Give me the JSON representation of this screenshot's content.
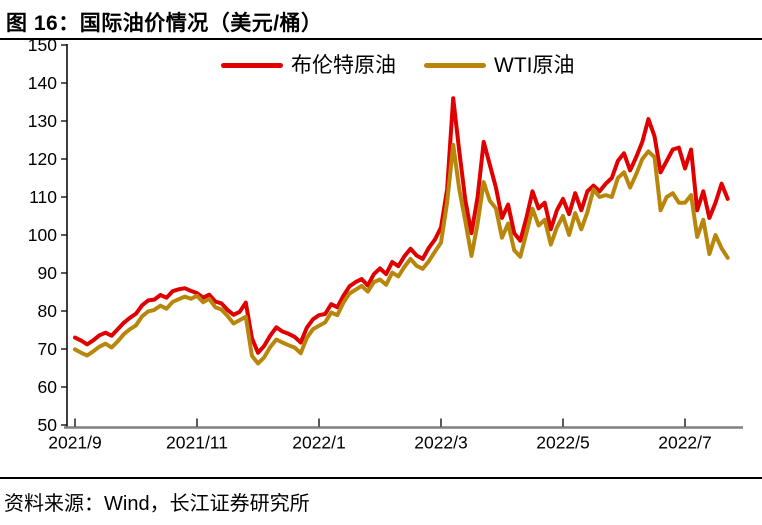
{
  "header": {
    "title": "图  16：国际油价情况（美元/桶）"
  },
  "footer": {
    "source": "资料来源：Wind，长江证券研究所"
  },
  "chart_data": {
    "type": "line",
    "title": "国际油价情况（美元/桶）",
    "unit": "美元/桶",
    "grid": false,
    "legend_position": "top-center",
    "x_axis": {
      "unit": "months_since_2021_09",
      "start": 0,
      "step": 0.1,
      "ticks": [
        {
          "m": 0,
          "label": "2021/9"
        },
        {
          "m": 2,
          "label": "2021/11"
        },
        {
          "m": 4,
          "label": "2022/1"
        },
        {
          "m": 6,
          "label": "2022/3"
        },
        {
          "m": 8,
          "label": "2022/5"
        },
        {
          "m": 10,
          "label": "2022/7"
        }
      ],
      "spine_color": "#808080"
    },
    "y_axis": {
      "min": 50,
      "max": 150,
      "ticks": [
        150,
        140,
        130,
        120,
        110,
        100,
        90,
        80,
        70,
        60,
        50
      ],
      "spine_color": "#000000"
    },
    "series": [
      {
        "name": "布伦特原油",
        "color": "#e00000",
        "values": [
          73.0,
          72.2,
          71.2,
          72.3,
          73.6,
          74.3,
          73.5,
          75.2,
          76.9,
          78.2,
          79.3,
          81.5,
          82.8,
          83.0,
          84.2,
          83.5,
          85.2,
          85.7,
          86.0,
          85.3,
          84.7,
          83.5,
          84.3,
          82.5,
          82.0,
          80.3,
          79.0,
          79.8,
          82.2,
          72.9,
          69.0,
          70.8,
          73.5,
          75.7,
          74.6,
          74.0,
          73.2,
          71.7,
          75.6,
          77.8,
          78.9,
          79.2,
          81.8,
          81.0,
          84.0,
          86.5,
          87.6,
          88.4,
          86.7,
          89.7,
          91.2,
          89.7,
          92.9,
          91.8,
          94.4,
          96.4,
          94.6,
          93.7,
          96.6,
          98.8,
          102.0,
          112.0,
          136.0,
          122.0,
          109.0,
          100.5,
          110.0,
          124.5,
          118.5,
          112.5,
          104.5,
          108.0,
          100.5,
          98.5,
          104.5,
          111.5,
          107.0,
          108.5,
          101.5,
          106.5,
          109.5,
          105.5,
          111.0,
          106.5,
          111.5,
          113.0,
          111.5,
          113.5,
          115.0,
          119.5,
          121.5,
          117.0,
          120.5,
          124.5,
          130.5,
          126.0,
          116.5,
          119.5,
          122.5,
          123.0,
          117.5,
          122.5,
          106.5,
          111.5,
          104.5,
          108.5,
          113.5,
          109.5
        ]
      },
      {
        "name": "WTI原油",
        "color": "#b8860b",
        "values": [
          69.9,
          69.0,
          68.3,
          69.4,
          70.6,
          71.4,
          70.4,
          72.0,
          73.9,
          75.2,
          76.2,
          78.6,
          79.9,
          80.3,
          81.4,
          80.6,
          82.4,
          83.1,
          83.8,
          83.2,
          84.0,
          82.3,
          83.2,
          81.0,
          80.4,
          78.7,
          76.7,
          77.6,
          78.5,
          68.2,
          66.2,
          67.8,
          70.5,
          72.5,
          71.7,
          71.0,
          70.4,
          68.9,
          72.9,
          75.2,
          76.1,
          77.0,
          79.6,
          78.9,
          82.2,
          84.6,
          85.6,
          86.6,
          85.1,
          87.6,
          88.3,
          86.9,
          90.1,
          89.1,
          91.6,
          93.7,
          91.9,
          91.1,
          93.1,
          95.6,
          98.0,
          108.5,
          123.7,
          112.0,
          103.5,
          94.5,
          103.0,
          113.9,
          109.0,
          107.0,
          99.3,
          103.0,
          96.0,
          94.3,
          100.5,
          106.9,
          102.5,
          104.0,
          97.5,
          102.0,
          105.0,
          100.0,
          105.8,
          101.5,
          106.0,
          112.0,
          110.0,
          110.5,
          110.0,
          115.0,
          116.5,
          112.5,
          116.0,
          120.0,
          122.0,
          120.5,
          106.5,
          110.0,
          111.0,
          108.5,
          108.5,
          110.5,
          99.5,
          104.0,
          95.0,
          100.0,
          96.5,
          94.0
        ]
      }
    ]
  }
}
